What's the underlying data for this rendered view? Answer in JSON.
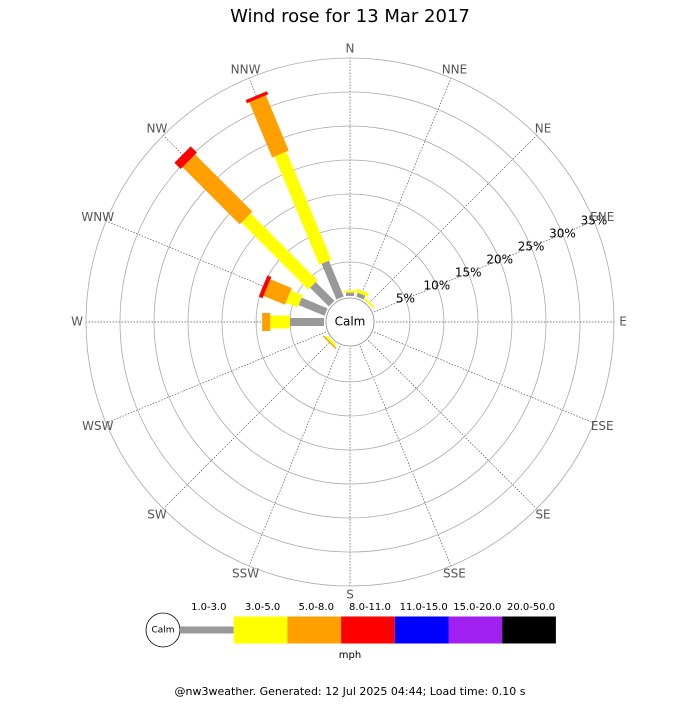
{
  "chart_data": {
    "type": "windrose",
    "title": "Wind rose for 13 Mar 2017",
    "categories": [
      "N",
      "NNE",
      "NE",
      "ENE",
      "E",
      "ESE",
      "SE",
      "SSE",
      "S",
      "SSW",
      "SW",
      "WSW",
      "W",
      "WNW",
      "NW",
      "NNW"
    ],
    "center_label": "Calm",
    "rlim": [
      0,
      35
    ],
    "rticks": [
      {
        "value": 5,
        "label": "5%"
      },
      {
        "value": 10,
        "label": "10%"
      },
      {
        "value": 15,
        "label": "15%"
      },
      {
        "value": 20,
        "label": "20%"
      },
      {
        "value": 25,
        "label": "25%"
      },
      {
        "value": 30,
        "label": "30%"
      },
      {
        "value": 35,
        "label": "35%"
      }
    ],
    "series": [
      {
        "name": "1.0-3.0",
        "color": "#999999",
        "values": [
          0.5,
          0.6,
          0,
          0,
          0,
          0,
          0,
          0,
          0,
          0,
          0,
          0,
          5,
          4.1,
          3.9,
          5.7
        ]
      },
      {
        "name": "3.0-5.0",
        "color": "#ffff00",
        "values": [
          0.3,
          0.5,
          0.3,
          0,
          0,
          0,
          0,
          0,
          0,
          0,
          0.3,
          0,
          2.9,
          1.9,
          13.9,
          17.2
        ]
      },
      {
        "name": "5.0-8.0",
        "color": "#ffa000",
        "values": [
          0,
          0,
          0,
          0,
          0,
          0,
          0,
          0,
          0,
          0,
          0.2,
          0,
          1.2,
          3.4,
          11.9,
          8.8
        ]
      },
      {
        "name": "8.0-11.0",
        "color": "#ff0000",
        "values": [
          0,
          0,
          0,
          0,
          0,
          0,
          0,
          0,
          0,
          0,
          0,
          0,
          0,
          0.6,
          1.3,
          0.5
        ]
      },
      {
        "name": "11.0-15.0",
        "color": "#0000ff",
        "values": [
          0,
          0,
          0,
          0,
          0,
          0,
          0,
          0,
          0,
          0,
          0,
          0,
          0,
          0,
          0,
          0
        ]
      },
      {
        "name": "15.0-20.0",
        "color": "#a020f0",
        "values": [
          0,
          0,
          0,
          0,
          0,
          0,
          0,
          0,
          0,
          0,
          0,
          0,
          0,
          0,
          0,
          0
        ]
      },
      {
        "name": "20.0-50.0",
        "color": "#000000",
        "values": [
          0,
          0,
          0,
          0,
          0,
          0,
          0,
          0,
          0,
          0,
          0,
          0,
          0,
          0,
          0,
          0
        ]
      }
    ],
    "legend_unit": "mph",
    "footer": "@nw3weather. Generated: 12 Jul 2025 04:44; Load time: 0.10 s"
  }
}
